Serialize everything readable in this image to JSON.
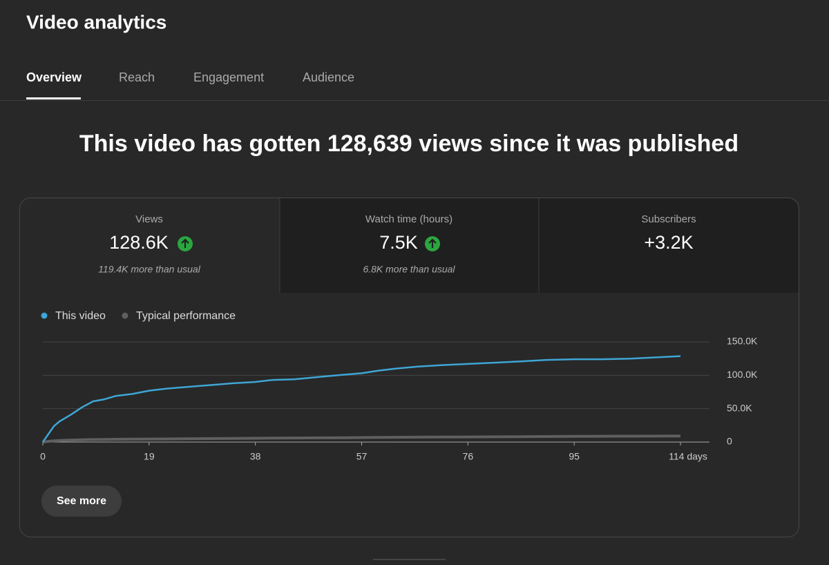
{
  "header": {
    "title": "Video analytics"
  },
  "tabs": [
    "Overview",
    "Reach",
    "Engagement",
    "Audience"
  ],
  "headline": "This video has gotten 128,639 views since it was published",
  "metrics": [
    {
      "label": "Views",
      "value": "128.6K",
      "note": "119.4K more than usual"
    },
    {
      "label": "Watch time (hours)",
      "value": "7.5K",
      "note": "6.8K more than usual"
    },
    {
      "label": "Subscribers",
      "value": "+3.2K"
    }
  ],
  "chart_data": {
    "type": "line",
    "x": [
      0,
      1,
      2,
      3,
      5,
      7,
      9,
      11,
      13,
      16,
      19,
      22,
      25,
      28,
      31,
      34,
      38,
      41,
      45,
      50,
      54,
      57,
      60,
      63,
      67,
      71,
      76,
      81,
      86,
      90,
      95,
      100,
      105,
      110,
      114
    ],
    "series": [
      {
        "name": "This video",
        "color": "#3ea6d6",
        "values": [
          0,
          12000,
          24000,
          31000,
          41000,
          52000,
          61000,
          64000,
          69000,
          72000,
          77000,
          80000,
          82000,
          84000,
          86000,
          88000,
          90000,
          93000,
          94000,
          98000,
          101000,
          103000,
          107000,
          110000,
          113000,
          115000,
          117000,
          119000,
          121000,
          123000,
          124000,
          124000,
          125000,
          127000,
          128639
        ]
      },
      {
        "name": "Typical performance",
        "color": "#5f5f5f",
        "values": [
          0,
          1000,
          1800,
          2400,
          3000,
          3400,
          3700,
          3900,
          4100,
          4300,
          4500,
          4700,
          4900,
          5100,
          5300,
          5500,
          5700,
          5900,
          6100,
          6300,
          6500,
          6700,
          6900,
          7100,
          7300,
          7500,
          7700,
          7900,
          8100,
          8300,
          8500,
          8700,
          8800,
          8900,
          9000
        ]
      }
    ],
    "xlim": [
      0,
      114
    ],
    "xticks": [
      0,
      19,
      38,
      57,
      76,
      95,
      {
        "value": 114,
        "label": "114 days"
      }
    ],
    "ylim": [
      0,
      150000
    ],
    "yticks": [
      0,
      {
        "value": 50000,
        "label": "50.0K"
      },
      {
        "value": 100000,
        "label": "100.0K"
      },
      {
        "value": 150000,
        "label": "150.0K"
      }
    ],
    "grid": true
  },
  "button": "See more"
}
